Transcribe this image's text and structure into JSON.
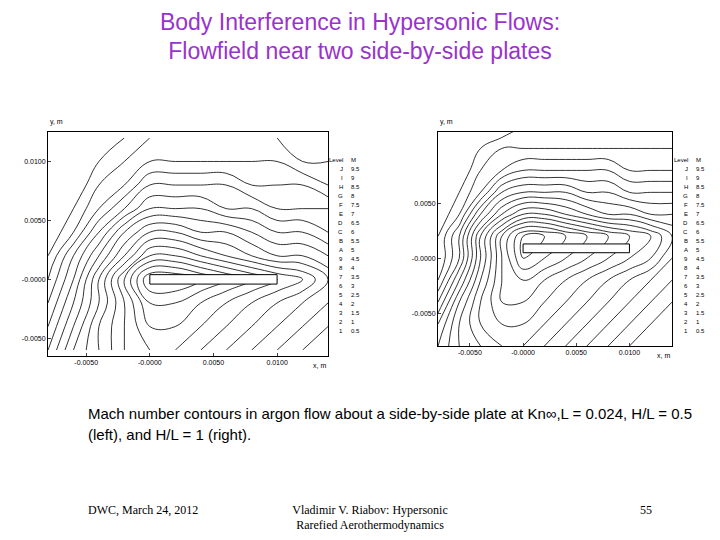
{
  "header": {
    "title": [
      "Body Interference in Hypersonic Flows:",
      "Flowfield near two side-by-side plates"
    ]
  },
  "chart_data": [
    {
      "type": "contour",
      "xlabel": "x, m",
      "ylabel": "y, m",
      "xlim": [
        -0.008,
        0.014
      ],
      "ylim": [
        -0.0065,
        0.0125
      ],
      "xticks": [
        {
          "value": -0.005,
          "label": "-0.0050"
        },
        {
          "value": 0,
          "label": "-0.0000"
        },
        {
          "value": 0.005,
          "label": "0.0050"
        },
        {
          "value": 0.01,
          "label": "0.0100"
        }
      ],
      "yticks": [
        {
          "value": -0.005,
          "label": "-0.0050"
        },
        {
          "value": 0,
          "label": "-0.0000"
        },
        {
          "value": 0.005,
          "label": "0.0050"
        },
        {
          "value": 0.01,
          "label": "0.0100"
        }
      ],
      "grid": false,
      "levels_header": [
        "Level",
        "M"
      ],
      "levels": [
        {
          "label": "J",
          "value": 9.5
        },
        {
          "label": "I",
          "value": 9
        },
        {
          "label": "H",
          "value": 8.5
        },
        {
          "label": "G",
          "value": 8
        },
        {
          "label": "F",
          "value": 7.5
        },
        {
          "label": "E",
          "value": 7
        },
        {
          "label": "D",
          "value": 6.5
        },
        {
          "label": "C",
          "value": 6
        },
        {
          "label": "B",
          "value": 5.5
        },
        {
          "label": "A",
          "value": 5
        },
        {
          "label": "9",
          "value": 4.5
        },
        {
          "label": "8",
          "value": 4
        },
        {
          "label": "7",
          "value": 3.5
        },
        {
          "label": "6",
          "value": 3
        },
        {
          "label": "5",
          "value": 2.5
        },
        {
          "label": "4",
          "value": 2
        },
        {
          "label": "3",
          "value": 1.5
        },
        {
          "label": "2",
          "value": 1
        },
        {
          "label": "1",
          "value": 0.5
        }
      ],
      "plate": {
        "x": [
          0,
          0.01
        ],
        "y": [
          -0.0004,
          0.0004
        ]
      },
      "x": [
        -0.008,
        -0.006,
        -0.004,
        -0.002,
        0,
        0.002,
        0.004,
        0.006,
        0.008,
        0.01,
        0.012,
        0.014
      ],
      "y": [
        -0.006,
        -0.004,
        -0.002,
        0,
        0.002,
        0.004,
        0.006,
        0.008,
        0.01,
        0.012
      ],
      "z": [
        [
          7,
          5.5,
          4.5,
          3.5,
          3,
          3,
          3.5,
          4,
          4.5,
          5,
          5.5,
          6
        ],
        [
          7.5,
          6,
          4.5,
          3.5,
          2.5,
          2.5,
          3,
          3.5,
          4,
          4.5,
          5,
          5.5
        ],
        [
          8,
          6.5,
          5,
          3.5,
          2,
          2,
          2.5,
          3,
          3.5,
          4,
          4.5,
          5
        ],
        [
          8.5,
          7,
          5,
          3,
          1,
          1,
          1.5,
          2,
          2.5,
          3,
          3.5,
          4.5
        ],
        [
          9,
          7.5,
          6,
          4.5,
          3,
          3,
          3.5,
          4,
          4.5,
          5,
          5,
          5.5
        ],
        [
          9.5,
          8.5,
          7,
          5.5,
          4.5,
          4.5,
          5,
          5,
          5.5,
          6,
          6,
          6.5
        ],
        [
          9.5,
          9,
          8,
          7,
          6,
          6,
          6,
          6.5,
          6.5,
          7,
          7,
          7
        ],
        [
          9.5,
          9.5,
          8.5,
          8,
          7,
          7,
          7,
          7,
          7.5,
          7.5,
          7.5,
          8
        ],
        [
          9.5,
          9.5,
          9,
          8.5,
          8,
          8,
          8,
          8,
          8,
          8,
          8.5,
          8.5
        ],
        [
          9.5,
          9.5,
          9.5,
          9,
          8.5,
          8.5,
          8.5,
          8.5,
          8.5,
          8.5,
          9,
          9
        ]
      ]
    },
    {
      "type": "contour",
      "xlabel": "x, m",
      "ylabel": "y, m",
      "xlim": [
        -0.008,
        0.014
      ],
      "ylim": [
        -0.008,
        0.0115
      ],
      "xticks": [
        {
          "value": -0.005,
          "label": "-0.0050"
        },
        {
          "value": 0,
          "label": "-0.0000"
        },
        {
          "value": 0.005,
          "label": "0.0050"
        },
        {
          "value": 0.01,
          "label": "0.0100"
        }
      ],
      "yticks": [
        {
          "value": -0.005,
          "label": "-0.0050"
        },
        {
          "value": 0,
          "label": "-0.0000"
        },
        {
          "value": 0.005,
          "label": "0.0050"
        }
      ],
      "grid": false,
      "levels_header": [
        "Level",
        "M"
      ],
      "levels": [
        {
          "label": "J",
          "value": 9.5
        },
        {
          "label": "I",
          "value": 9
        },
        {
          "label": "H",
          "value": 8.5
        },
        {
          "label": "G",
          "value": 8
        },
        {
          "label": "F",
          "value": 7.5
        },
        {
          "label": "E",
          "value": 7
        },
        {
          "label": "D",
          "value": 6.5
        },
        {
          "label": "C",
          "value": 6
        },
        {
          "label": "B",
          "value": 5.5
        },
        {
          "label": "A",
          "value": 5
        },
        {
          "label": "9",
          "value": 4.5
        },
        {
          "label": "8",
          "value": 4
        },
        {
          "label": "7",
          "value": 3.5
        },
        {
          "label": "6",
          "value": 3
        },
        {
          "label": "5",
          "value": 2.5
        },
        {
          "label": "4",
          "value": 2
        },
        {
          "label": "3",
          "value": 1.5
        },
        {
          "label": "2",
          "value": 1
        },
        {
          "label": "1",
          "value": 0.5
        }
      ],
      "plate": {
        "x": [
          0,
          0.01
        ],
        "y": [
          0.0005,
          0.0013
        ]
      },
      "x": [
        -0.008,
        -0.006,
        -0.004,
        -0.002,
        0,
        0.002,
        0.004,
        0.006,
        0.008,
        0.01,
        0.012,
        0.014
      ],
      "y": [
        -0.008,
        -0.006,
        -0.004,
        -0.002,
        0,
        0.002,
        0.004,
        0.006,
        0.008,
        0.01,
        0.012
      ],
      "z": [
        [
          6,
          5,
          4.5,
          4,
          4,
          4.5,
          5,
          5.5,
          6,
          6.5,
          7,
          7
        ],
        [
          6.5,
          5,
          4,
          3.5,
          3.5,
          4,
          4.5,
          5,
          5.5,
          6,
          6.5,
          7
        ],
        [
          7.5,
          5.5,
          4,
          3,
          3,
          3.5,
          4,
          4.5,
          5,
          5.5,
          6,
          6.5
        ],
        [
          8.5,
          6.5,
          4.5,
          3,
          2.5,
          3,
          3.5,
          4,
          4.5,
          5,
          5.5,
          6
        ],
        [
          9,
          7.5,
          5,
          3,
          1.5,
          2,
          2.5,
          3,
          3.5,
          4,
          4.5,
          5.5
        ],
        [
          9,
          7.5,
          5,
          3,
          1.5,
          1.5,
          2,
          2.5,
          3,
          3.5,
          4,
          5
        ],
        [
          9.5,
          8.5,
          6.5,
          5,
          4,
          4,
          4.5,
          5,
          5.5,
          5.5,
          6,
          6
        ],
        [
          9.5,
          9,
          8,
          6.5,
          6,
          6,
          6,
          6.5,
          6.5,
          7,
          7,
          7
        ],
        [
          9.5,
          9.5,
          8.5,
          8,
          7.5,
          7.5,
          7.5,
          7.5,
          7.5,
          8,
          8,
          8
        ],
        [
          9.5,
          9.5,
          9,
          8.5,
          8.5,
          8.5,
          8.5,
          8.5,
          8.5,
          8.5,
          8.5,
          8.5
        ],
        [
          9.5,
          9.5,
          9.5,
          9.5,
          9,
          9,
          9,
          9,
          9,
          9,
          9,
          9
        ]
      ]
    }
  ],
  "caption": "Mach number contours in argon flow about a side-by-side plate at Kn∞,L = 0.024, H/L = 0.5 (left), and H/L = 1 (right).",
  "footer": {
    "left": "DWC, March 24, 2012",
    "center": [
      "Vladimir V. Riabov: Hypersonic",
      "Rarefied Aerothermodynamics"
    ],
    "right": "55"
  }
}
